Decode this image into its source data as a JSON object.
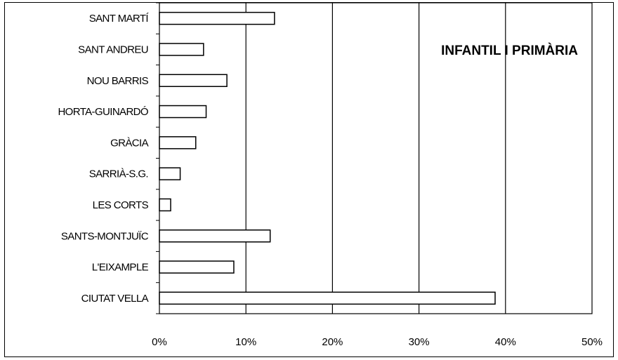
{
  "chart_data": {
    "type": "bar",
    "orientation": "horizontal",
    "title": "INFANTIL I PRIMÀRIA",
    "categories": [
      "SANT MARTÍ",
      "SANT ANDREU",
      "NOU BARRIS",
      "HORTA-GUINARDÓ",
      "GRÀCIA",
      "SARRIÀ-S.G.",
      "LES CORTS",
      "SANTS-MONTJUÏC",
      "L'EIXAMPLE",
      "CIUTAT VELLA"
    ],
    "values": [
      13.3,
      5.1,
      7.8,
      5.4,
      4.2,
      2.4,
      1.3,
      12.8,
      8.6,
      38.8
    ],
    "xlim": [
      0,
      50
    ],
    "xticks": [
      "0%",
      "10%",
      "20%",
      "30%",
      "40%",
      "50%"
    ],
    "xtick_values": [
      0,
      10,
      20,
      30,
      40,
      50
    ],
    "xlabel": "",
    "ylabel": "",
    "grid": "vertical",
    "legend": "none",
    "colors": {
      "bar_fill": "#ffffff",
      "bar_stroke": "#000000",
      "grid": "#000000"
    }
  }
}
